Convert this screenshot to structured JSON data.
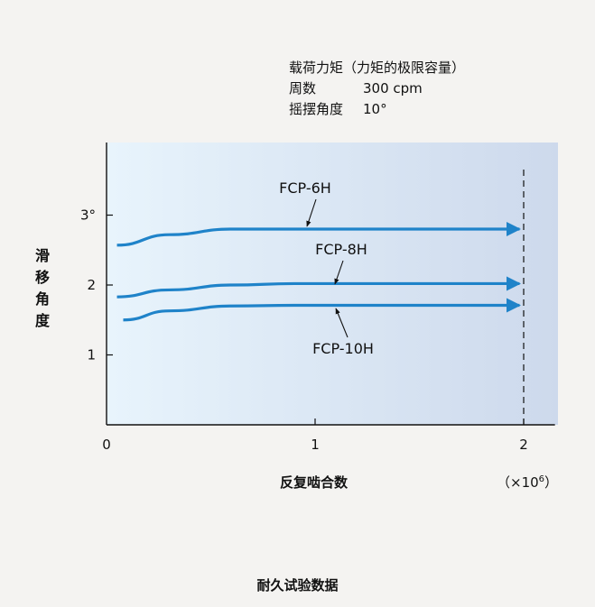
{
  "conditions": {
    "line1": "载荷力矩（力矩的极限容量）",
    "rows": [
      {
        "key": "周数",
        "value": "300 cpm"
      },
      {
        "key": "摇摆角度",
        "value": "10°"
      }
    ]
  },
  "caption": "耐久试验数据",
  "x_unit_prefix": "（×10",
  "x_unit_exp": "6",
  "x_unit_suffix": "）",
  "colors": {
    "series": "#1f83c9",
    "axis": "#111111",
    "plot_bg_left": "#e8f4fc",
    "plot_bg_right": "#cdd9ec"
  },
  "chart_data": {
    "type": "line",
    "xlabel": "反复啮合数",
    "ylabel": "滑移角度",
    "x_ticks": [
      "0",
      "1",
      "2"
    ],
    "y_ticks": [
      "1",
      "2",
      "3°"
    ],
    "xlim": [
      0,
      2.15
    ],
    "ylim": [
      0,
      4
    ],
    "reference_line_x": 2,
    "series": [
      {
        "name": "FCP-6H",
        "x": [
          0.05,
          0.3,
          0.6,
          0.9,
          1.4,
          1.98
        ],
        "y": [
          2.57,
          2.72,
          2.8,
          2.8,
          2.8,
          2.8
        ]
      },
      {
        "name": "FCP-8H",
        "x": [
          0.05,
          0.3,
          0.6,
          0.9,
          1.4,
          1.98
        ],
        "y": [
          1.83,
          1.93,
          2.0,
          2.02,
          2.02,
          2.02
        ]
      },
      {
        "name": "FCP-10H",
        "x": [
          0.08,
          0.3,
          0.6,
          0.9,
          1.4,
          1.98
        ],
        "y": [
          1.5,
          1.63,
          1.7,
          1.71,
          1.71,
          1.71
        ]
      }
    ],
    "labels": [
      {
        "series": "FCP-6H",
        "text": "FCP-6H"
      },
      {
        "series": "FCP-8H",
        "text": "FCP-8H"
      },
      {
        "series": "FCP-10H",
        "text": "FCP-10H"
      }
    ]
  }
}
